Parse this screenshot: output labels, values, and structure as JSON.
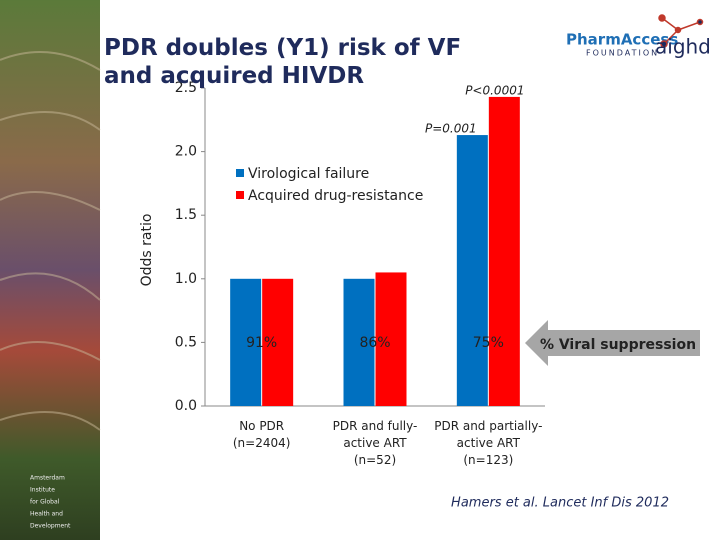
{
  "header": {
    "title": "PDR doubles (Y1) risk of VF and acquired HIVDR"
  },
  "logos": {
    "pharmaccess": "PharmAccess",
    "foundation": "FOUNDATION",
    "aighd": "aighd"
  },
  "sidebar": [
    "Amsterdam",
    "Institute",
    "for Global",
    "Health and",
    "Development"
  ],
  "chart_data": {
    "type": "bar",
    "y_label": "Odds ratio",
    "categories": [
      "No PDR\n(n=2404)",
      "PDR and fully-\nactive ART\n(n=52)",
      "PDR and partially-\nactive ART\n(n=123)"
    ],
    "series": [
      {
        "name": "Virological failure",
        "color": "#0070c0",
        "values": [
          1.0,
          1.0,
          2.13
        ]
      },
      {
        "name": "Acquired drug-resistance",
        "color": "#ff0000",
        "values": [
          1.0,
          1.05,
          2.43
        ]
      }
    ],
    "ylim": [
      0,
      2.5
    ],
    "yticks": [
      {
        "value": 0,
        "label": "0.0"
      },
      0.5,
      {
        "value": 1,
        "label": "1.0"
      },
      1.5,
      {
        "value": 2,
        "label": "2.0"
      },
      2.5
    ],
    "p_values": [
      "P=0.001",
      "P<0.0001"
    ],
    "suppression": [
      "91%",
      "86%",
      "75%"
    ],
    "suppression_label": "% Viral suppression"
  },
  "citation": "Hamers et al. Lancet Inf Dis 2012"
}
